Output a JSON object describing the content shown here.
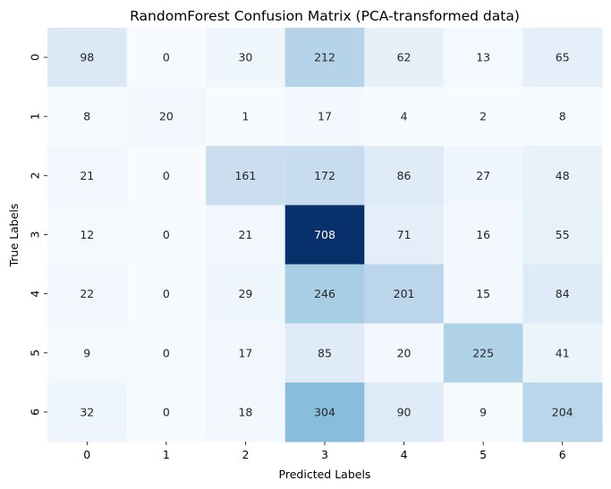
{
  "chart_data": {
    "type": "heatmap",
    "title": "RandomForest Confusion Matrix (PCA-transformed data)",
    "xlabel": "Predicted Labels",
    "ylabel": "True Labels",
    "x_categories": [
      "0",
      "1",
      "2",
      "3",
      "4",
      "5",
      "6"
    ],
    "y_categories": [
      "0",
      "1",
      "2",
      "3",
      "4",
      "5",
      "6"
    ],
    "values": [
      [
        98,
        0,
        30,
        212,
        62,
        13,
        65
      ],
      [
        8,
        20,
        1,
        17,
        4,
        2,
        8
      ],
      [
        21,
        0,
        161,
        172,
        86,
        27,
        48
      ],
      [
        12,
        0,
        21,
        708,
        71,
        16,
        55
      ],
      [
        22,
        0,
        29,
        246,
        201,
        15,
        84
      ],
      [
        9,
        0,
        17,
        85,
        20,
        225,
        41
      ],
      [
        32,
        0,
        18,
        304,
        90,
        9,
        204
      ]
    ],
    "colormap": "Blues",
    "value_range": [
      0,
      708
    ],
    "colorbar": false,
    "annotations": true
  }
}
